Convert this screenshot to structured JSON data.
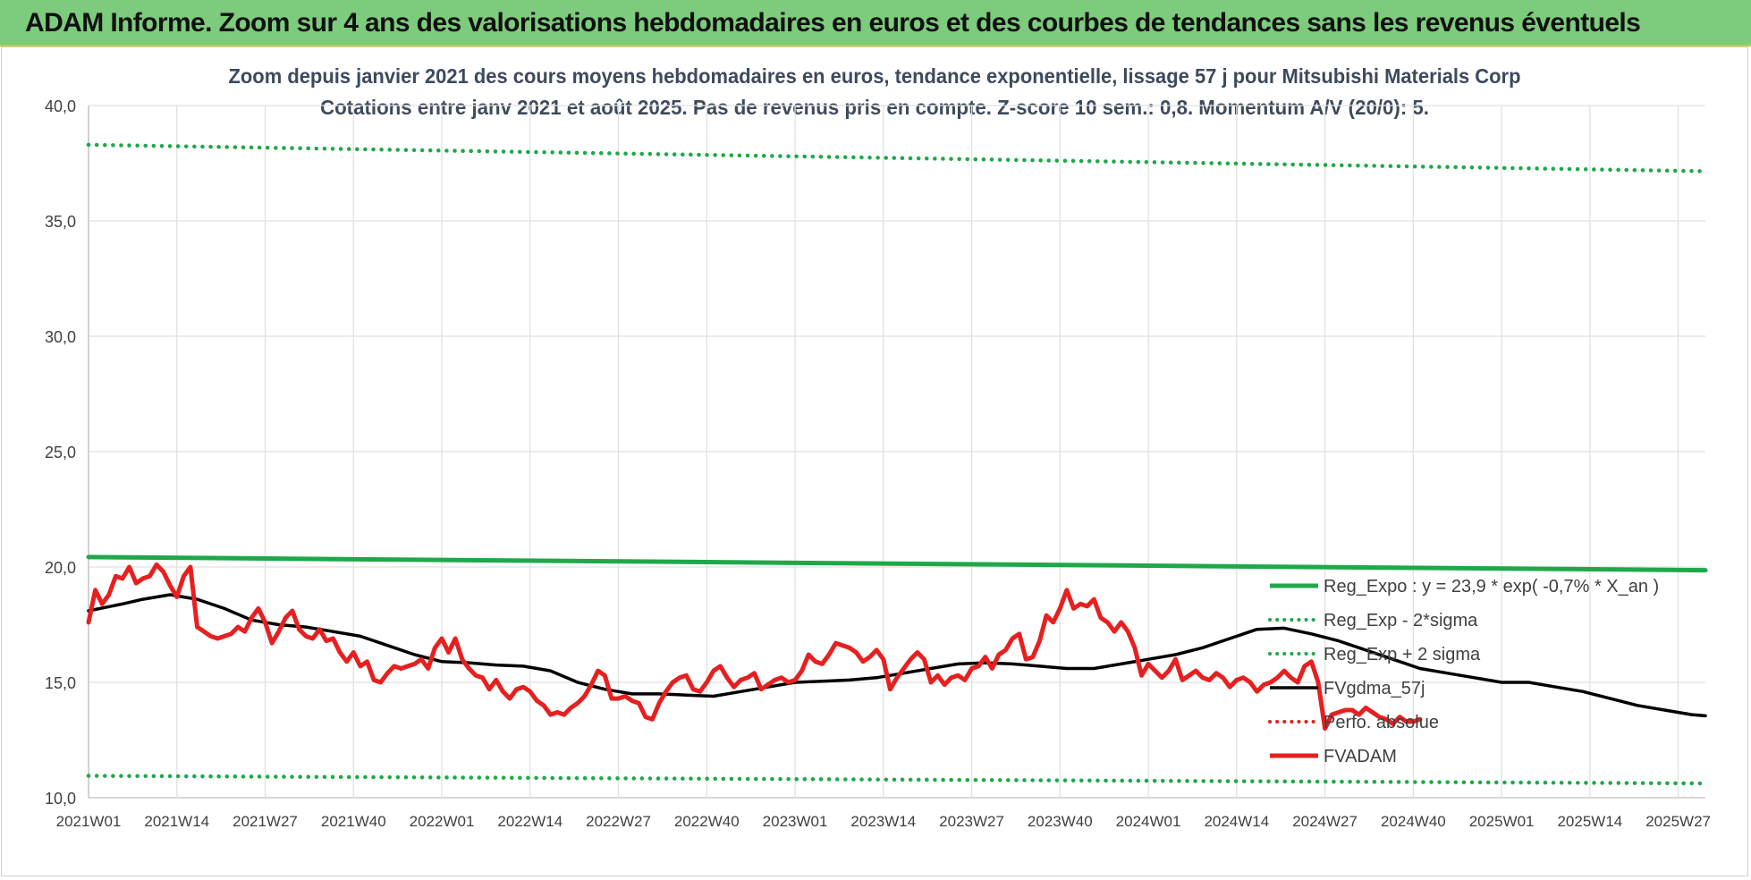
{
  "header": {
    "banner": "ADAM Informe. Zoom sur 4 ans des valorisations hebdomadaires en euros et des courbes de tendances sans les revenus éventuels"
  },
  "chart_data": {
    "type": "line",
    "title": "Zoom depuis janvier 2021 des cours moyens hebdomadaires en euros, tendance exponentielle, lissage 57 j pour Mitsubishi Materials Corp",
    "subtitle": "Cotations entre janv 2021 et août 2025.  Pas de revenus pris en compte. Z-score 10 sem.: 0,8. Momentum A/V (20/0): 5.",
    "xlabel": "",
    "ylabel": "",
    "ylim": [
      10,
      40
    ],
    "yticks": [
      "10,0",
      "15,0",
      "20,0",
      "25,0",
      "30,0",
      "35,0",
      "40,0"
    ],
    "x_range_weeks": [
      0,
      238
    ],
    "xticks": [
      {
        "week": 0,
        "label": "2021W01"
      },
      {
        "week": 13,
        "label": "2021W14"
      },
      {
        "week": 26,
        "label": "2021W27"
      },
      {
        "week": 39,
        "label": "2021W40"
      },
      {
        "week": 52,
        "label": "2022W01"
      },
      {
        "week": 65,
        "label": "2022W14"
      },
      {
        "week": 78,
        "label": "2022W27"
      },
      {
        "week": 91,
        "label": "2022W40"
      },
      {
        "week": 104,
        "label": "2023W01"
      },
      {
        "week": 117,
        "label": "2023W14"
      },
      {
        "week": 130,
        "label": "2023W27"
      },
      {
        "week": 143,
        "label": "2023W40"
      },
      {
        "week": 156,
        "label": "2024W01"
      },
      {
        "week": 169,
        "label": "2024W14"
      },
      {
        "week": 182,
        "label": "2024W27"
      },
      {
        "week": 195,
        "label": "2024W40"
      },
      {
        "week": 208,
        "label": "2025W01"
      },
      {
        "week": 221,
        "label": "2025W14"
      },
      {
        "week": 234,
        "label": "2025W27"
      }
    ],
    "grid": true,
    "legend_position": "right",
    "series": [
      {
        "name": "Reg_Expo : y = 23,9 * exp( -0,7% *  X_an )",
        "style": "solid",
        "color": "#1fa84a",
        "points": [
          [
            0,
            20.43
          ],
          [
            238,
            19.86
          ]
        ]
      },
      {
        "name": "Reg_Exp - 2*sigma",
        "style": "dotted",
        "color": "#1fa84a",
        "points": [
          [
            0,
            10.95
          ],
          [
            238,
            10.62
          ]
        ]
      },
      {
        "name": "Reg_Exp + 2 sigma",
        "style": "dotted",
        "color": "#1fa84a",
        "points": [
          [
            0,
            38.3
          ],
          [
            238,
            37.15
          ]
        ]
      },
      {
        "name": "FVgdma_57j",
        "style": "solid",
        "color": "#000000",
        "points": [
          [
            0,
            18.1
          ],
          [
            5,
            18.4
          ],
          [
            8,
            18.6
          ],
          [
            12,
            18.8
          ],
          [
            16,
            18.6
          ],
          [
            20,
            18.2
          ],
          [
            24,
            17.7
          ],
          [
            28,
            17.5
          ],
          [
            32,
            17.4
          ],
          [
            36,
            17.2
          ],
          [
            40,
            17.0
          ],
          [
            44,
            16.6
          ],
          [
            48,
            16.2
          ],
          [
            52,
            15.9
          ],
          [
            56,
            15.85
          ],
          [
            60,
            15.75
          ],
          [
            64,
            15.7
          ],
          [
            68,
            15.5
          ],
          [
            72,
            15.0
          ],
          [
            76,
            14.7
          ],
          [
            80,
            14.5
          ],
          [
            84,
            14.5
          ],
          [
            88,
            14.45
          ],
          [
            92,
            14.4
          ],
          [
            96,
            14.6
          ],
          [
            100,
            14.8
          ],
          [
            104,
            15.0
          ],
          [
            108,
            15.05
          ],
          [
            112,
            15.1
          ],
          [
            116,
            15.2
          ],
          [
            120,
            15.4
          ],
          [
            124,
            15.6
          ],
          [
            128,
            15.8
          ],
          [
            132,
            15.85
          ],
          [
            136,
            15.8
          ],
          [
            140,
            15.7
          ],
          [
            144,
            15.6
          ],
          [
            148,
            15.6
          ],
          [
            152,
            15.8
          ],
          [
            156,
            16.0
          ],
          [
            160,
            16.2
          ],
          [
            164,
            16.5
          ],
          [
            168,
            16.9
          ],
          [
            172,
            17.3
          ],
          [
            176,
            17.35
          ],
          [
            180,
            17.1
          ],
          [
            184,
            16.8
          ],
          [
            188,
            16.4
          ],
          [
            192,
            16.0
          ],
          [
            196,
            15.6
          ],
          [
            200,
            15.4
          ],
          [
            204,
            15.2
          ],
          [
            208,
            15.0
          ],
          [
            212,
            15.0
          ],
          [
            216,
            14.8
          ],
          [
            220,
            14.6
          ],
          [
            224,
            14.3
          ],
          [
            228,
            14.0
          ],
          [
            232,
            13.8
          ],
          [
            236,
            13.6
          ],
          [
            238,
            13.55
          ]
        ]
      },
      {
        "name": "Perfo. absolue",
        "style": "dotted",
        "color": "#e02020",
        "points": []
      },
      {
        "name": "FVADAM",
        "style": "solid",
        "color": "#e62020",
        "points": [
          [
            0,
            17.6
          ],
          [
            1,
            19.0
          ],
          [
            2,
            18.4
          ],
          [
            3,
            18.8
          ],
          [
            4,
            19.6
          ],
          [
            5,
            19.5
          ],
          [
            6,
            20.0
          ],
          [
            7,
            19.3
          ],
          [
            8,
            19.5
          ],
          [
            9,
            19.6
          ],
          [
            10,
            20.1
          ],
          [
            11,
            19.8
          ],
          [
            12,
            19.2
          ],
          [
            13,
            18.7
          ],
          [
            14,
            19.6
          ],
          [
            15,
            20.0
          ],
          [
            16,
            17.4
          ],
          [
            17,
            17.2
          ],
          [
            18,
            17.0
          ],
          [
            19,
            16.9
          ],
          [
            20,
            17.0
          ],
          [
            21,
            17.1
          ],
          [
            22,
            17.4
          ],
          [
            23,
            17.2
          ],
          [
            24,
            17.8
          ],
          [
            25,
            18.2
          ],
          [
            26,
            17.6
          ],
          [
            27,
            16.7
          ],
          [
            28,
            17.2
          ],
          [
            29,
            17.8
          ],
          [
            30,
            18.1
          ],
          [
            31,
            17.3
          ],
          [
            32,
            17.0
          ],
          [
            33,
            16.9
          ],
          [
            34,
            17.3
          ],
          [
            35,
            16.8
          ],
          [
            36,
            16.9
          ],
          [
            37,
            16.3
          ],
          [
            38,
            15.9
          ],
          [
            39,
            16.3
          ],
          [
            40,
            15.7
          ],
          [
            41,
            15.9
          ],
          [
            42,
            15.1
          ],
          [
            43,
            15.0
          ],
          [
            44,
            15.4
          ],
          [
            45,
            15.7
          ],
          [
            46,
            15.6
          ],
          [
            47,
            15.7
          ],
          [
            48,
            15.8
          ],
          [
            49,
            16.0
          ],
          [
            50,
            15.6
          ],
          [
            51,
            16.5
          ],
          [
            52,
            16.9
          ],
          [
            53,
            16.3
          ],
          [
            54,
            16.9
          ],
          [
            55,
            16.0
          ],
          [
            56,
            15.6
          ],
          [
            57,
            15.3
          ],
          [
            58,
            15.2
          ],
          [
            59,
            14.7
          ],
          [
            60,
            15.1
          ],
          [
            61,
            14.6
          ],
          [
            62,
            14.3
          ],
          [
            63,
            14.7
          ],
          [
            64,
            14.8
          ],
          [
            65,
            14.6
          ],
          [
            66,
            14.2
          ],
          [
            67,
            14.0
          ],
          [
            68,
            13.6
          ],
          [
            69,
            13.7
          ],
          [
            70,
            13.6
          ],
          [
            71,
            13.9
          ],
          [
            72,
            14.1
          ],
          [
            73,
            14.4
          ],
          [
            74,
            14.9
          ],
          [
            75,
            15.5
          ],
          [
            76,
            15.3
          ],
          [
            77,
            14.3
          ],
          [
            78,
            14.3
          ],
          [
            79,
            14.4
          ],
          [
            80,
            14.2
          ],
          [
            81,
            14.1
          ],
          [
            82,
            13.5
          ],
          [
            83,
            13.4
          ],
          [
            84,
            14.1
          ],
          [
            85,
            14.6
          ],
          [
            86,
            15.0
          ],
          [
            87,
            15.2
          ],
          [
            88,
            15.3
          ],
          [
            89,
            14.7
          ],
          [
            90,
            14.6
          ],
          [
            91,
            15.0
          ],
          [
            92,
            15.5
          ],
          [
            93,
            15.7
          ],
          [
            94,
            15.2
          ],
          [
            95,
            14.8
          ],
          [
            96,
            15.1
          ],
          [
            97,
            15.2
          ],
          [
            98,
            15.4
          ],
          [
            99,
            14.7
          ],
          [
            100,
            14.9
          ],
          [
            101,
            15.1
          ],
          [
            102,
            15.2
          ],
          [
            103,
            15.0
          ],
          [
            104,
            15.1
          ],
          [
            105,
            15.5
          ],
          [
            106,
            16.2
          ],
          [
            107,
            15.9
          ],
          [
            108,
            15.8
          ],
          [
            109,
            16.2
          ],
          [
            110,
            16.7
          ],
          [
            111,
            16.6
          ],
          [
            112,
            16.5
          ],
          [
            113,
            16.3
          ],
          [
            114,
            15.9
          ],
          [
            115,
            16.1
          ],
          [
            116,
            16.4
          ],
          [
            117,
            16.0
          ],
          [
            118,
            14.7
          ],
          [
            119,
            15.2
          ],
          [
            120,
            15.6
          ],
          [
            121,
            16.0
          ],
          [
            122,
            16.3
          ],
          [
            123,
            16.0
          ],
          [
            124,
            15.0
          ],
          [
            125,
            15.3
          ],
          [
            126,
            14.9
          ],
          [
            127,
            15.2
          ],
          [
            128,
            15.3
          ],
          [
            129,
            15.1
          ],
          [
            130,
            15.6
          ],
          [
            131,
            15.7
          ],
          [
            132,
            16.1
          ],
          [
            133,
            15.6
          ],
          [
            134,
            16.2
          ],
          [
            135,
            16.4
          ],
          [
            136,
            16.9
          ],
          [
            137,
            17.1
          ],
          [
            138,
            16.0
          ],
          [
            139,
            16.1
          ],
          [
            140,
            16.8
          ],
          [
            141,
            17.9
          ],
          [
            142,
            17.6
          ],
          [
            143,
            18.2
          ],
          [
            144,
            19.0
          ],
          [
            145,
            18.2
          ],
          [
            146,
            18.4
          ],
          [
            147,
            18.3
          ],
          [
            148,
            18.6
          ],
          [
            149,
            17.8
          ],
          [
            150,
            17.6
          ],
          [
            151,
            17.2
          ],
          [
            152,
            17.6
          ],
          [
            153,
            17.2
          ],
          [
            154,
            16.5
          ],
          [
            155,
            15.3
          ],
          [
            156,
            15.8
          ],
          [
            157,
            15.5
          ],
          [
            158,
            15.2
          ],
          [
            159,
            15.5
          ],
          [
            160,
            16.0
          ],
          [
            161,
            15.1
          ],
          [
            162,
            15.3
          ],
          [
            163,
            15.5
          ],
          [
            164,
            15.2
          ],
          [
            165,
            15.1
          ],
          [
            166,
            15.4
          ],
          [
            167,
            15.2
          ],
          [
            168,
            14.8
          ],
          [
            169,
            15.1
          ],
          [
            170,
            15.2
          ],
          [
            171,
            15.0
          ],
          [
            172,
            14.6
          ],
          [
            173,
            14.9
          ],
          [
            174,
            15.0
          ],
          [
            175,
            15.2
          ],
          [
            176,
            15.5
          ],
          [
            177,
            15.2
          ],
          [
            178,
            15.0
          ],
          [
            179,
            15.7
          ],
          [
            180,
            15.9
          ],
          [
            181,
            15.0
          ],
          [
            182,
            13.0
          ],
          [
            183,
            13.6
          ],
          [
            184,
            13.7
          ],
          [
            185,
            13.8
          ],
          [
            186,
            13.8
          ],
          [
            187,
            13.6
          ],
          [
            188,
            13.9
          ],
          [
            189,
            13.7
          ],
          [
            190,
            13.5
          ],
          [
            191,
            13.4
          ],
          [
            192,
            13.2
          ],
          [
            193,
            13.5
          ],
          [
            194,
            13.3
          ],
          [
            195,
            13.3
          ],
          [
            196,
            13.4
          ]
        ]
      }
    ]
  }
}
